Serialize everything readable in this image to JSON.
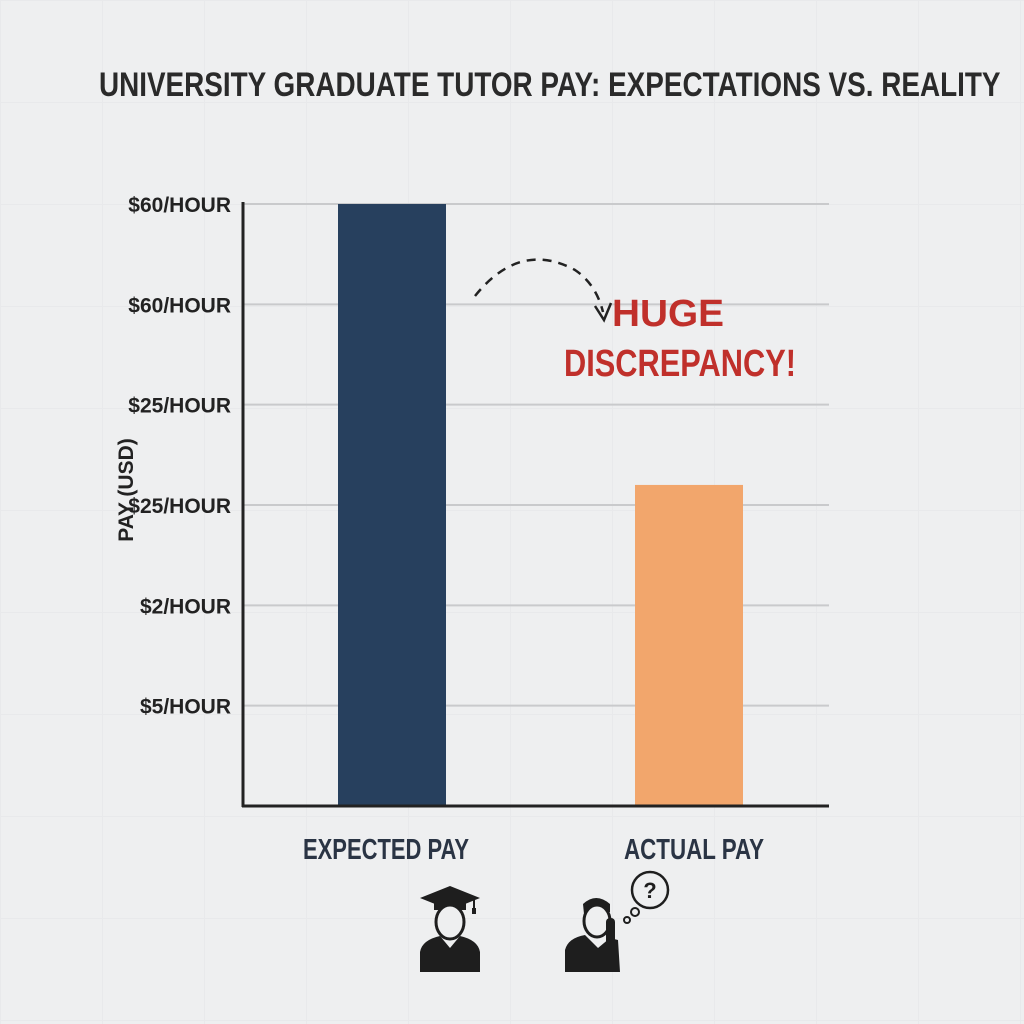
{
  "chart_data": {
    "type": "bar",
    "title": "UNIVERSITY GRADUATE TUTOR PAY: EXPECTATIONS VS. REALITY",
    "ylabel": "PAY (USD)",
    "xlabel": "",
    "categories": [
      "EXPECTED PAY",
      "ACTUAL PAY"
    ],
    "values": [
      6,
      3.2
    ],
    "ylim": [
      0,
      6
    ],
    "y_ticks": [
      {
        "level": 6,
        "label": "$60/HOUR"
      },
      {
        "level": 5,
        "label": "$60/HOUR"
      },
      {
        "level": 4,
        "label": "$25/HOUR"
      },
      {
        "level": 3,
        "label": "$25/HOUR"
      },
      {
        "level": 2,
        "label": "$2/HOUR"
      },
      {
        "level": 1,
        "label": "$5/HOUR"
      }
    ],
    "grid": true,
    "colors": {
      "expected": "#27405e",
      "actual": "#f2a66c",
      "annotation": "#c0302b",
      "axis": "#222222",
      "gridline": "#c9cacc"
    },
    "annotation": {
      "line1": "HUGE",
      "line2": "DISCREPANCY!",
      "arrow": "dashed-curved-arrow"
    },
    "icons": [
      "graduate-icon",
      "confused-person-icon"
    ]
  }
}
